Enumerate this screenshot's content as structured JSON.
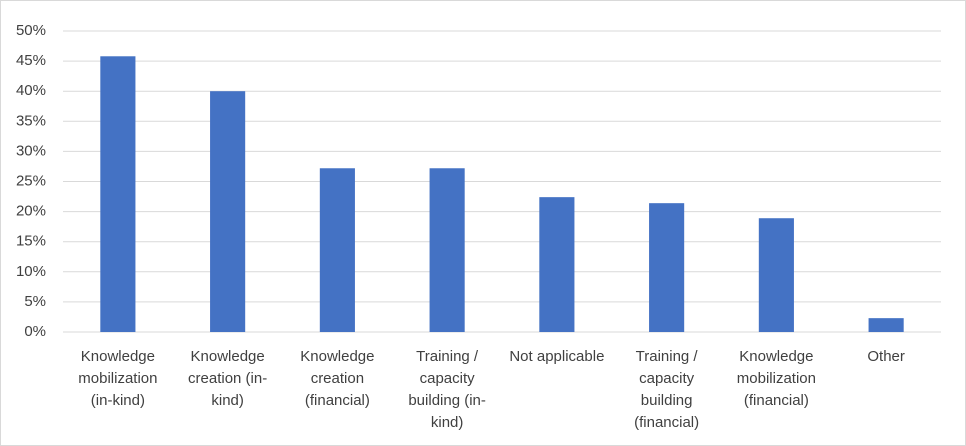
{
  "chart_data": {
    "type": "bar",
    "categories": [
      "Knowledge mobilization (in-kind)",
      "Knowledge creation (in-kind)",
      "Knowledge creation (financial)",
      "Training / capacity building (in-kind)",
      "Not applicable",
      "Training / capacity building (financial)",
      "Knowledge mobilization (financial)",
      "Other"
    ],
    "values": [
      45.8,
      40.0,
      27.2,
      27.2,
      22.4,
      21.4,
      18.9,
      2.3
    ],
    "color": "#4472c4",
    "ylim": [
      0,
      50
    ],
    "yticks": [
      {
        "value": 0,
        "label": "0%"
      },
      {
        "value": 5,
        "label": "5%"
      },
      {
        "value": 10,
        "label": "10%"
      },
      {
        "value": 15,
        "label": "15%"
      },
      {
        "value": 20,
        "label": "20%"
      },
      {
        "value": 25,
        "label": "25%"
      },
      {
        "value": 30,
        "label": "30%"
      },
      {
        "value": 35,
        "label": "35%"
      },
      {
        "value": 40,
        "label": "40%"
      },
      {
        "value": 45,
        "label": "45%"
      },
      {
        "value": 50,
        "label": "50%"
      }
    ],
    "grid": true
  }
}
